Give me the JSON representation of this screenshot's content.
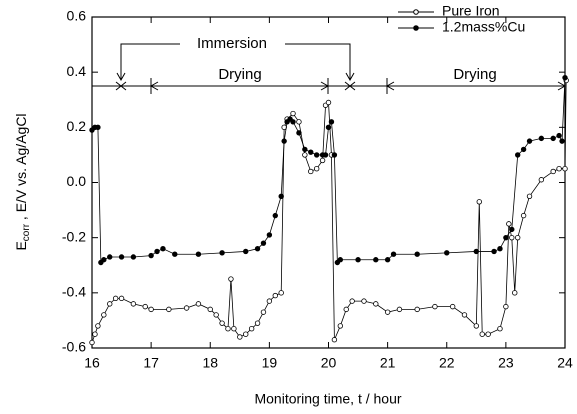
{
  "chart_data": {
    "type": "line",
    "xlabel": "Monitoring time,  t / hour",
    "ylabel": "E",
    "ylabel_sub": "corr",
    "ylabel_rest": " ,  E/V vs. Ag/AgCl",
    "annotations": [
      "Immersion",
      "Drying",
      "Drying"
    ],
    "xlim": [
      16,
      24
    ],
    "xticks": [
      16,
      17,
      18,
      19,
      20,
      21,
      22,
      23,
      24
    ],
    "ylim": [
      -0.6,
      0.6
    ],
    "yticks": [
      -0.6,
      -0.4,
      -0.2,
      {
        "value": 0,
        "label": "0.0"
      },
      0.2,
      0.4,
      0.6
    ],
    "legend": "upper right",
    "series": [
      {
        "name": "Pure Iron",
        "color": "#000000",
        "fill": "#ffffff",
        "x": [
          16.0,
          16.05,
          16.1,
          16.2,
          16.3,
          16.4,
          16.5,
          16.7,
          16.9,
          17.0,
          17.3,
          17.6,
          17.8,
          18.0,
          18.1,
          18.2,
          18.3,
          18.35,
          18.4,
          18.5,
          18.6,
          18.7,
          18.8,
          18.9,
          19.0,
          19.1,
          19.2,
          19.25,
          19.3,
          19.4,
          19.5,
          19.6,
          19.7,
          19.8,
          19.9,
          19.95,
          20.0,
          20.05,
          20.1,
          20.2,
          20.3,
          20.4,
          20.6,
          20.8,
          21.0,
          21.2,
          21.5,
          21.8,
          22.1,
          22.3,
          22.5,
          22.55,
          22.6,
          22.7,
          22.9,
          23.0,
          23.05,
          23.1,
          23.15,
          23.2,
          23.3,
          23.4,
          23.6,
          23.8,
          23.9,
          24.0,
          24.02
        ],
        "values": [
          -0.58,
          -0.55,
          -0.52,
          -0.48,
          -0.44,
          -0.42,
          -0.42,
          -0.44,
          -0.45,
          -0.46,
          -0.46,
          -0.455,
          -0.44,
          -0.46,
          -0.48,
          -0.51,
          -0.53,
          -0.35,
          -0.53,
          -0.56,
          -0.55,
          -0.53,
          -0.51,
          -0.47,
          -0.43,
          -0.41,
          -0.4,
          0.2,
          0.23,
          0.25,
          0.22,
          0.1,
          0.04,
          0.05,
          0.08,
          0.28,
          0.29,
          0.1,
          -0.57,
          -0.52,
          -0.46,
          -0.43,
          -0.43,
          -0.44,
          -0.47,
          -0.46,
          -0.46,
          -0.45,
          -0.45,
          -0.48,
          -0.52,
          -0.07,
          -0.55,
          -0.55,
          -0.53,
          -0.45,
          -0.15,
          -0.2,
          -0.4,
          -0.2,
          -0.12,
          -0.05,
          0.01,
          0.04,
          0.05,
          0.05,
          0.37
        ]
      },
      {
        "name": "1.2mass%Cu",
        "color": "#000000",
        "fill": "#000000",
        "x": [
          16.0,
          16.05,
          16.1,
          16.15,
          16.2,
          16.3,
          16.5,
          16.7,
          17.0,
          17.1,
          17.2,
          17.4,
          17.8,
          18.2,
          18.6,
          18.8,
          18.9,
          19.0,
          19.1,
          19.2,
          19.25,
          19.3,
          19.35,
          19.4,
          19.5,
          19.6,
          19.7,
          19.8,
          19.9,
          19.95,
          20.0,
          20.05,
          20.1,
          20.15,
          20.2,
          20.5,
          20.8,
          21.0,
          21.1,
          21.5,
          22.0,
          22.5,
          22.8,
          22.9,
          23.0,
          23.1,
          23.2,
          23.3,
          23.4,
          23.6,
          23.8,
          23.9,
          23.95,
          24.0
        ],
        "values": [
          0.19,
          0.2,
          0.2,
          -0.29,
          -0.28,
          -0.27,
          -0.27,
          -0.27,
          -0.265,
          -0.25,
          -0.24,
          -0.26,
          -0.26,
          -0.255,
          -0.25,
          -0.24,
          -0.22,
          -0.19,
          -0.12,
          -0.05,
          0.15,
          0.22,
          0.23,
          0.22,
          0.18,
          0.12,
          0.11,
          0.1,
          0.1,
          0.1,
          0.2,
          0.22,
          0.1,
          -0.29,
          -0.28,
          -0.28,
          -0.28,
          -0.28,
          -0.26,
          -0.26,
          -0.255,
          -0.25,
          -0.25,
          -0.24,
          -0.2,
          -0.17,
          0.1,
          0.12,
          0.15,
          0.16,
          0.16,
          0.17,
          0.15,
          0.38
        ]
      }
    ]
  }
}
